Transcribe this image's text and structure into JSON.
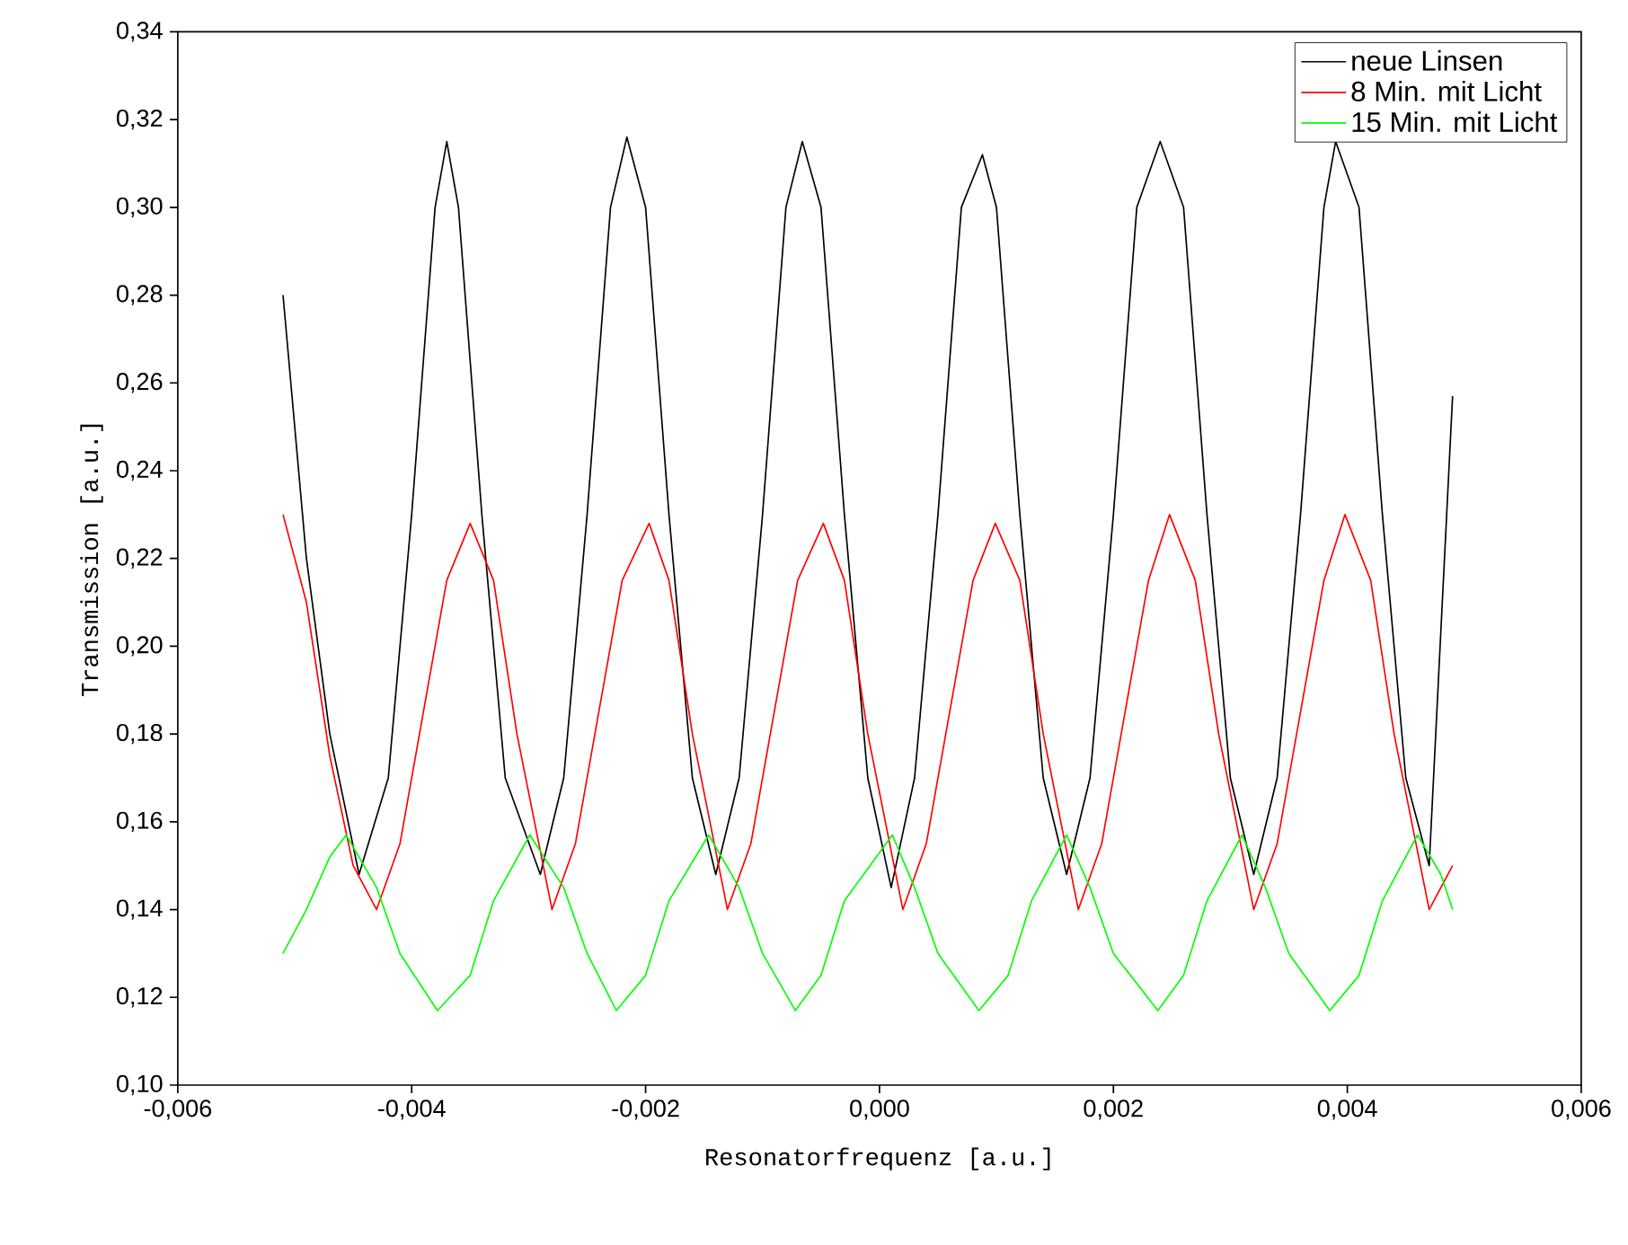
{
  "chart_data": {
    "type": "line",
    "xlabel": "Resonatorfrequenz [a.u.]",
    "ylabel": "Transmission [a.u.]",
    "xlim": [
      -0.006,
      0.006
    ],
    "ylim": [
      0.1,
      0.34
    ],
    "xticks": [
      {
        "value": -0.006,
        "label": "-0,006"
      },
      {
        "value": -0.004,
        "label": "-0,004"
      },
      {
        "value": -0.002,
        "label": "-0,002"
      },
      {
        "value": 0,
        "label": "0,000"
      },
      {
        "value": 0.002,
        "label": "0,002"
      },
      {
        "value": 0.004,
        "label": "0,004"
      },
      {
        "value": 0.006,
        "label": "0,006"
      }
    ],
    "yticks": [
      {
        "value": 0.1,
        "label": "0,10"
      },
      {
        "value": 0.12,
        "label": "0,12"
      },
      {
        "value": 0.14,
        "label": "0,14"
      },
      {
        "value": 0.16,
        "label": "0,16"
      },
      {
        "value": 0.18,
        "label": "0,18"
      },
      {
        "value": 0.2,
        "label": "0,20"
      },
      {
        "value": 0.22,
        "label": "0,22"
      },
      {
        "value": 0.24,
        "label": "0,24"
      },
      {
        "value": 0.26,
        "label": "0,26"
      },
      {
        "value": 0.28,
        "label": "0,28"
      },
      {
        "value": 0.3,
        "label": "0,30"
      },
      {
        "value": 0.32,
        "label": "0,32"
      },
      {
        "value": 0.34,
        "label": "0,34"
      }
    ],
    "grid": false,
    "legend": "top right",
    "marker": "none",
    "line_style": "solid",
    "series": [
      {
        "name": "neue Linsen",
        "color": "#000000",
        "x": [
          -0.0051,
          -0.0049,
          -0.0047,
          -0.00445,
          -0.0042,
          -0.004,
          -0.0038,
          -0.0037,
          -0.0036,
          -0.0034,
          -0.0032,
          -0.0029,
          -0.0027,
          -0.0025,
          -0.0023,
          -0.00216,
          -0.002,
          -0.0018,
          -0.0016,
          -0.0014,
          -0.0012,
          -0.001,
          -0.0008,
          -0.00066,
          -0.0005,
          -0.0003,
          -0.0001,
          0.0001,
          0.0003,
          0.0005,
          0.0007,
          0.00088,
          0.001,
          0.0012,
          0.0014,
          0.0016,
          0.0018,
          0.002,
          0.0022,
          0.0024,
          0.0026,
          0.0028,
          0.003,
          0.0032,
          0.0034,
          0.0036,
          0.0038,
          0.0039,
          0.0041,
          0.0043,
          0.0045,
          0.0047,
          0.0049
        ],
        "values": [
          0.28,
          0.22,
          0.18,
          0.148,
          0.17,
          0.23,
          0.3,
          0.315,
          0.3,
          0.23,
          0.17,
          0.148,
          0.17,
          0.23,
          0.3,
          0.316,
          0.3,
          0.23,
          0.17,
          0.148,
          0.17,
          0.23,
          0.3,
          0.315,
          0.3,
          0.23,
          0.17,
          0.145,
          0.17,
          0.23,
          0.3,
          0.312,
          0.3,
          0.23,
          0.17,
          0.148,
          0.17,
          0.23,
          0.3,
          0.315,
          0.3,
          0.23,
          0.17,
          0.148,
          0.17,
          0.23,
          0.3,
          0.315,
          0.3,
          0.23,
          0.17,
          0.15,
          0.257
        ]
      },
      {
        "name": "8 Min. mit Licht",
        "color": "#ff0000",
        "x": [
          -0.0051,
          -0.0049,
          -0.0047,
          -0.0045,
          -0.0043,
          -0.0041,
          -0.0039,
          -0.0037,
          -0.0035,
          -0.0033,
          -0.0031,
          -0.0028,
          -0.0026,
          -0.0024,
          -0.0022,
          -0.00197,
          -0.0018,
          -0.0016,
          -0.0013,
          -0.0011,
          -0.0009,
          -0.0007,
          -0.00048,
          -0.0003,
          -0.0001,
          0.0002,
          0.0004,
          0.0006,
          0.0008,
          0.00099,
          0.0012,
          0.0014,
          0.0017,
          0.0019,
          0.0021,
          0.0023,
          0.00248,
          0.0027,
          0.0029,
          0.0032,
          0.0034,
          0.0036,
          0.0038,
          0.00398,
          0.0042,
          0.0044,
          0.0047,
          0.0049
        ],
        "values": [
          0.23,
          0.21,
          0.175,
          0.15,
          0.14,
          0.155,
          0.185,
          0.215,
          0.228,
          0.215,
          0.18,
          0.14,
          0.155,
          0.185,
          0.215,
          0.228,
          0.215,
          0.18,
          0.14,
          0.155,
          0.185,
          0.215,
          0.228,
          0.215,
          0.18,
          0.14,
          0.155,
          0.185,
          0.215,
          0.228,
          0.215,
          0.18,
          0.14,
          0.155,
          0.185,
          0.215,
          0.23,
          0.215,
          0.18,
          0.14,
          0.155,
          0.185,
          0.215,
          0.23,
          0.215,
          0.18,
          0.14,
          0.15
        ]
      },
      {
        "name": "15 Min. mit Licht",
        "color": "#00ff00",
        "x": [
          -0.0051,
          -0.0049,
          -0.0047,
          -0.00456,
          -0.0043,
          -0.0041,
          -0.00378,
          -0.0035,
          -0.0033,
          -0.00299,
          -0.0027,
          -0.0025,
          -0.00225,
          -0.002,
          -0.0018,
          -0.00146,
          -0.0012,
          -0.001,
          -0.00072,
          -0.0005,
          -0.0003,
          0.00011,
          0.0003,
          0.0005,
          0.00085,
          0.0011,
          0.0013,
          0.0016,
          0.0018,
          0.002,
          0.00238,
          0.0026,
          0.0028,
          0.0031,
          0.0033,
          0.0035,
          0.00385,
          0.0041,
          0.0043,
          0.0046,
          0.0048,
          0.0049
        ],
        "values": [
          0.13,
          0.14,
          0.152,
          0.157,
          0.145,
          0.13,
          0.117,
          0.125,
          0.142,
          0.157,
          0.145,
          0.13,
          0.117,
          0.125,
          0.142,
          0.157,
          0.145,
          0.13,
          0.117,
          0.125,
          0.142,
          0.157,
          0.145,
          0.13,
          0.117,
          0.125,
          0.142,
          0.157,
          0.145,
          0.13,
          0.117,
          0.125,
          0.142,
          0.157,
          0.145,
          0.13,
          0.117,
          0.125,
          0.142,
          0.157,
          0.148,
          0.14
        ]
      }
    ]
  }
}
